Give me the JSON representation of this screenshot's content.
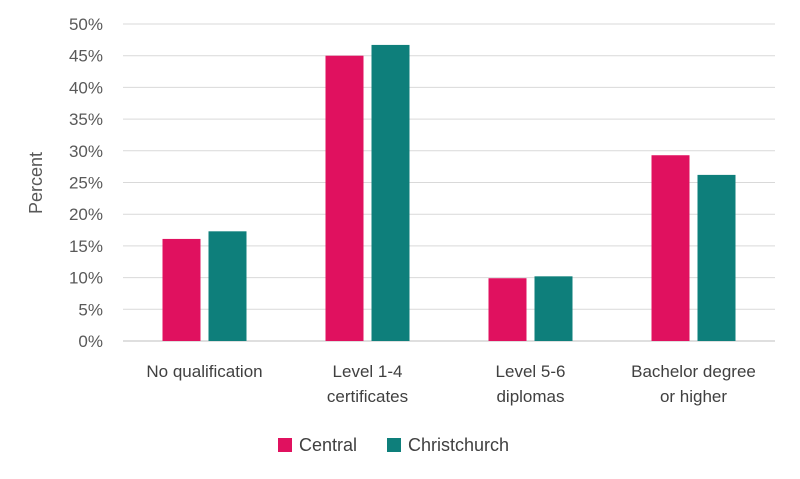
{
  "chart_data": {
    "type": "bar",
    "title": "",
    "xlabel": "",
    "ylabel": "Percent",
    "ylim": [
      0,
      50
    ],
    "y_tick_step": 5,
    "y_tick_format": "percent",
    "grid": true,
    "legend_position": "bottom",
    "categories": [
      [
        "No qualification"
      ],
      [
        "Level 1-4",
        "certificates"
      ],
      [
        "Level 5-6",
        "diplomas"
      ],
      [
        "Bachelor degree",
        "or higher"
      ]
    ],
    "series": [
      {
        "name": "Central",
        "color": "#E0115F",
        "values": [
          16.1,
          45.0,
          9.9,
          29.3
        ]
      },
      {
        "name": "Christchurch",
        "color": "#0E7F7B",
        "values": [
          17.3,
          46.7,
          10.2,
          26.2
        ]
      }
    ]
  }
}
